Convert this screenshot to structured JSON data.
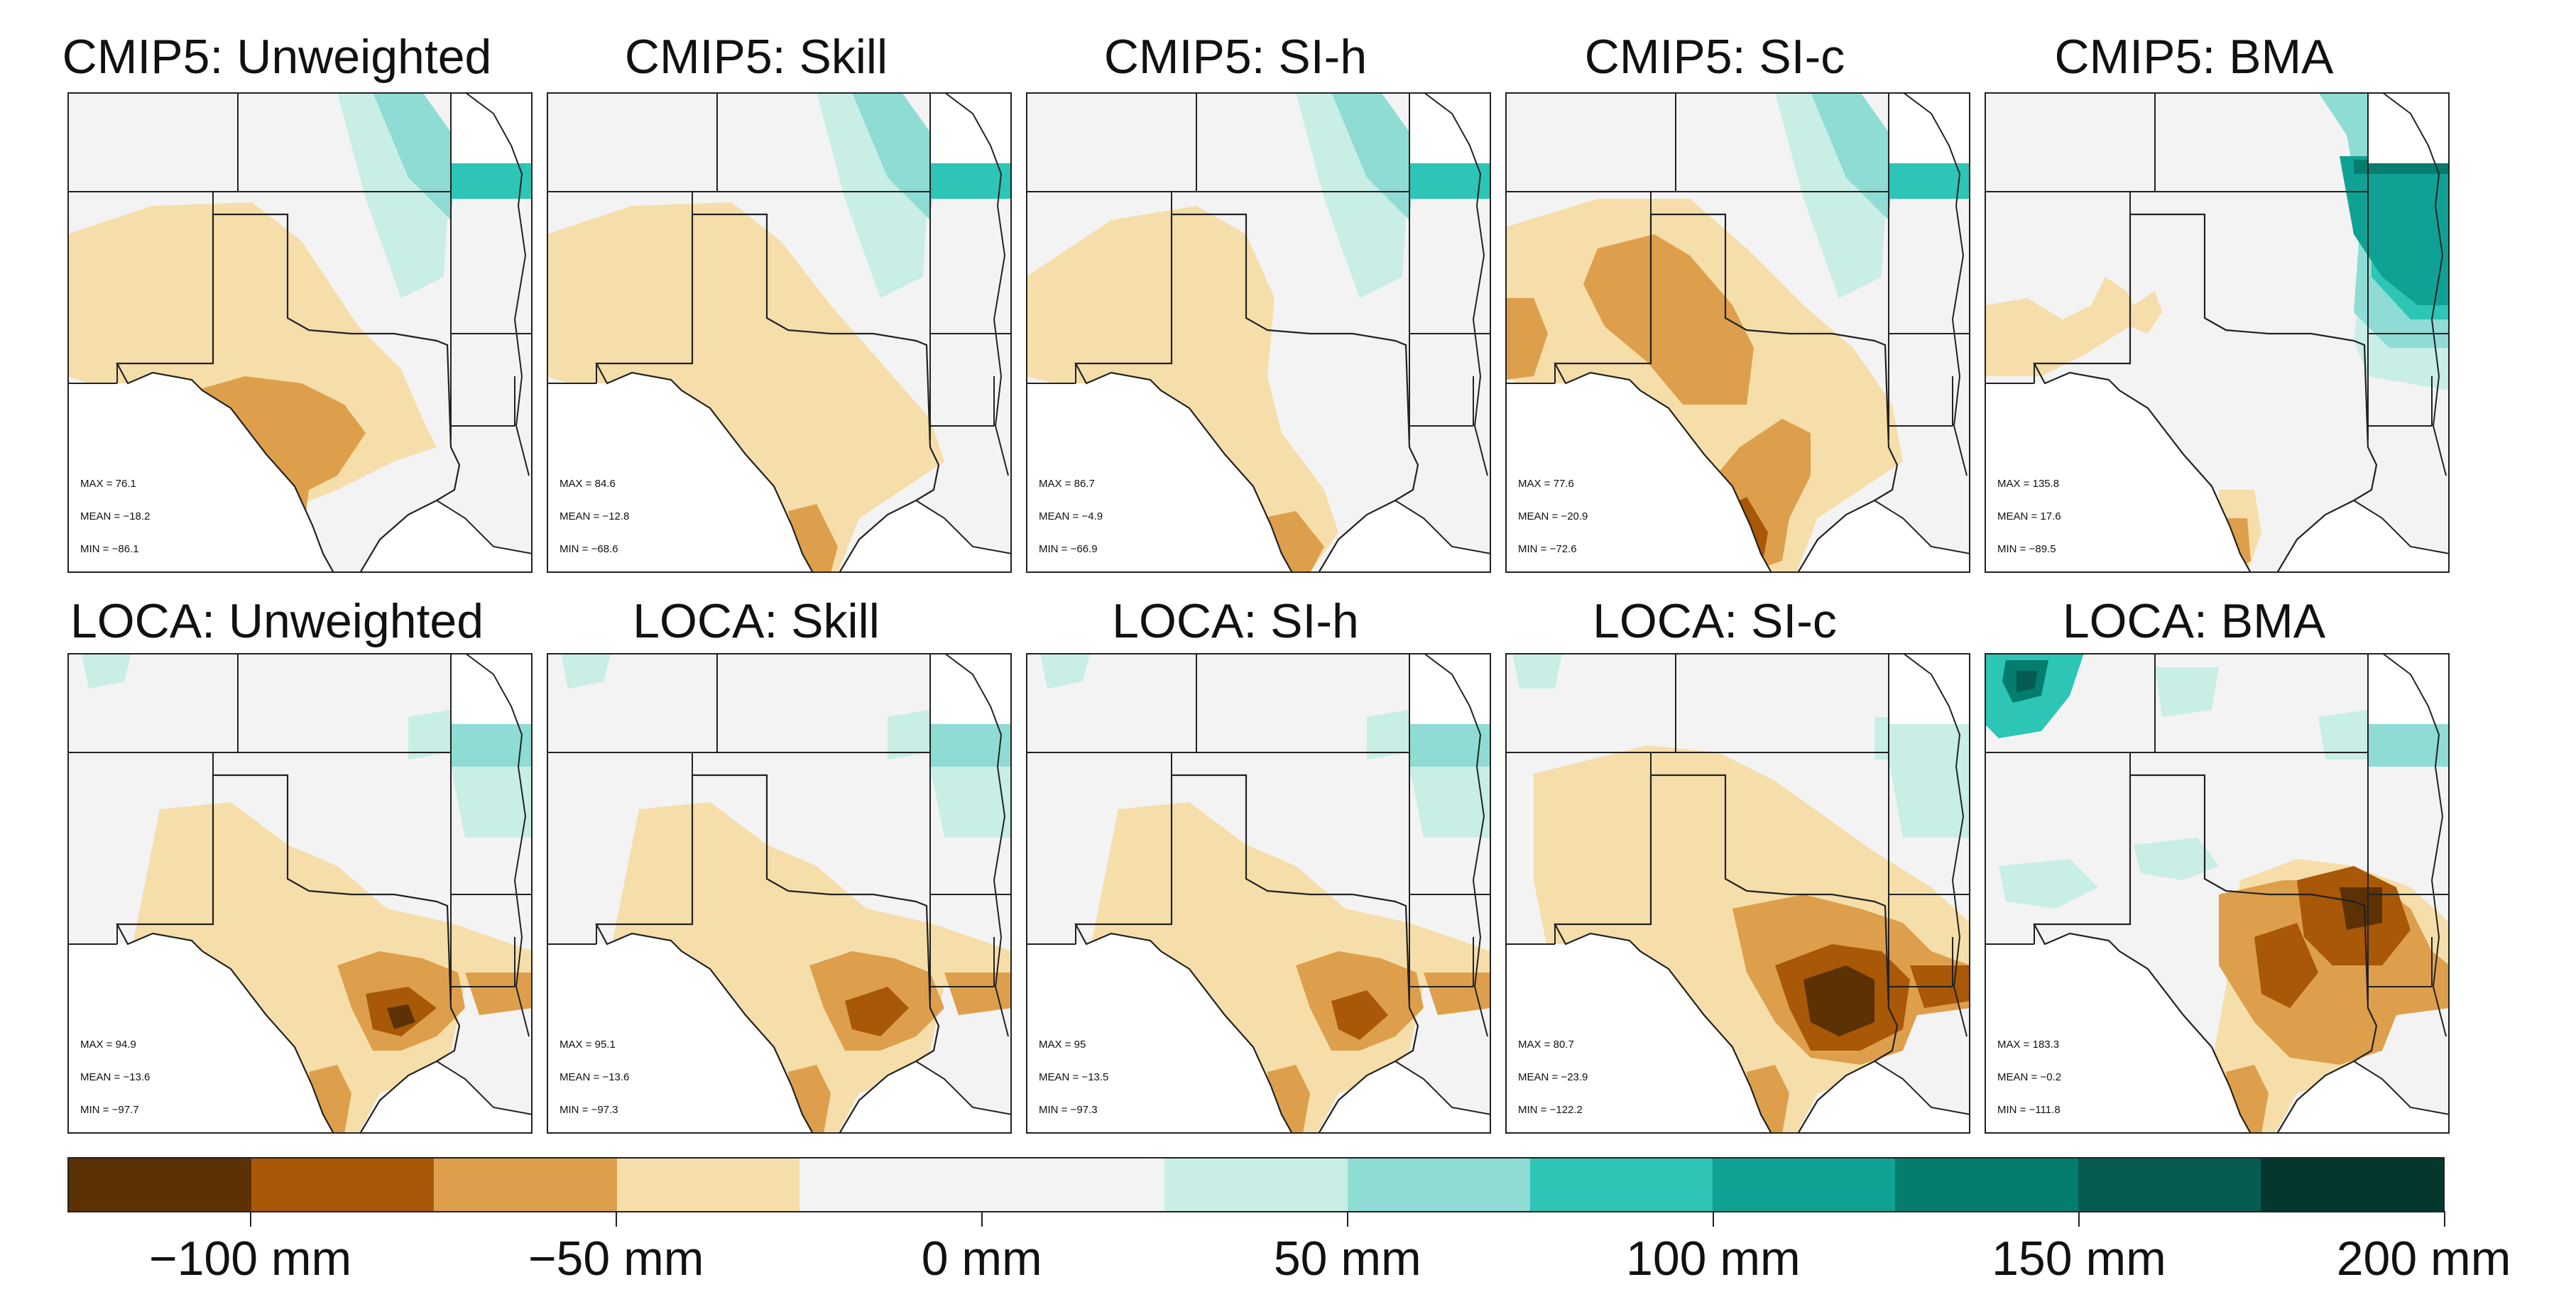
{
  "figure": {
    "panels": [
      {
        "title": "CMIP5: Unweighted",
        "max_label": "MAX = 76.1",
        "mean_label": "MEAN = −18.2",
        "min_label": "MIN = −86.1"
      },
      {
        "title": "CMIP5: Skill",
        "max_label": "MAX = 84.6",
        "mean_label": "MEAN = −12.8",
        "min_label": "MIN = −68.6"
      },
      {
        "title": "CMIP5: SI-h",
        "max_label": "MAX = 86.7",
        "mean_label": "MEAN = −4.9",
        "min_label": "MIN = −66.9"
      },
      {
        "title": "CMIP5: SI-c",
        "max_label": "MAX = 77.6",
        "mean_label": "MEAN = −20.9",
        "min_label": "MIN = −72.6"
      },
      {
        "title": "CMIP5: BMA",
        "max_label": "MAX = 135.8",
        "mean_label": "MEAN = 17.6",
        "min_label": "MIN = −89.5"
      },
      {
        "title": "LOCA: Unweighted",
        "max_label": "MAX = 94.9",
        "mean_label": "MEAN = −13.6",
        "min_label": "MIN = −97.7"
      },
      {
        "title": "LOCA: Skill",
        "max_label": "MAX = 95.1",
        "mean_label": "MEAN = −13.6",
        "min_label": "MIN = −97.3"
      },
      {
        "title": "LOCA: SI-h",
        "max_label": "MAX = 95",
        "mean_label": "MEAN = −13.5",
        "min_label": "MIN = −97.3"
      },
      {
        "title": "LOCA: SI-c",
        "max_label": "MAX = 80.7",
        "mean_label": "MEAN = −23.9",
        "min_label": "MIN = −122.2"
      },
      {
        "title": "LOCA: BMA",
        "max_label": "MAX = 183.3",
        "mean_label": "MEAN = −0.2",
        "min_label": "MIN = −111.8"
      }
    ]
  },
  "colorbar": {
    "colors": [
      "#5c3103",
      "#a85807",
      "#dd9f4c",
      "#f5dea9",
      "#f3f3f3",
      "#f3f3f3",
      "#c8eee6",
      "#8edcd3",
      "#2cc5b6",
      "#0fa294",
      "#047c6e",
      "#065c50",
      "#04382f"
    ],
    "ticks": [
      {
        "value": -100,
        "label": "−100 mm"
      },
      {
        "value": -50,
        "label": "−50 mm"
      },
      {
        "value": 0,
        "label": "0 mm"
      },
      {
        "value": 50,
        "label": "50 mm"
      },
      {
        "value": 100,
        "label": "100 mm"
      },
      {
        "value": 150,
        "label": "150 mm"
      },
      {
        "value": 200,
        "label": "200 mm"
      }
    ],
    "range": [
      -125,
      200
    ]
  }
}
